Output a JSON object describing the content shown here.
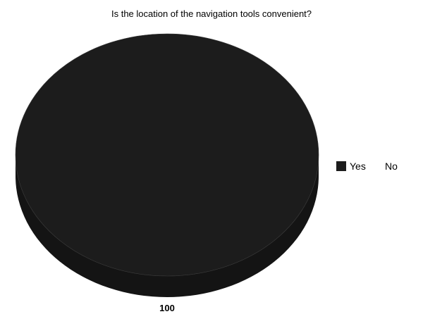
{
  "chart_data": {
    "type": "pie",
    "title": "Is the location of the navigation tools convenient?",
    "categories": [
      "Yes",
      "No"
    ],
    "values": [
      100,
      0
    ],
    "data_labels": [
      "100"
    ],
    "legend": {
      "position": "right",
      "entries": [
        {
          "label": "Yes",
          "color": "#1c1c1c",
          "swatch": true
        },
        {
          "label": "No",
          "color": "#ffffff",
          "swatch": false
        }
      ]
    },
    "style": {
      "three_d": true,
      "top_color": "#1c1c1c",
      "side_color": "#141414",
      "edge_color": "#3a3a3a"
    }
  }
}
